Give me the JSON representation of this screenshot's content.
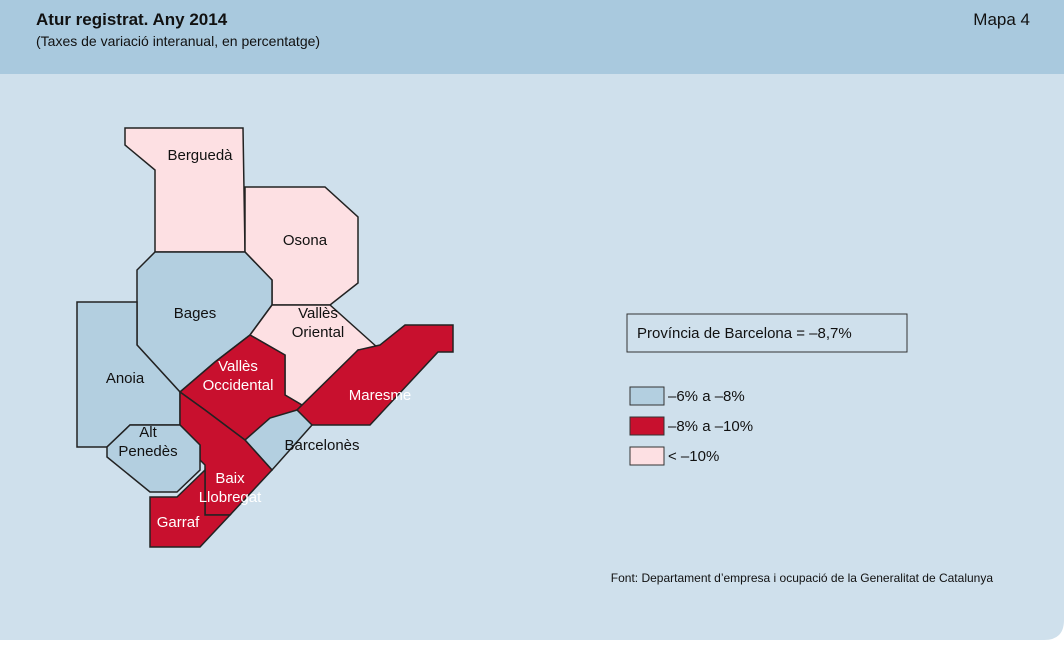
{
  "header": {
    "title": "Atur registrat. Any 2014",
    "subtitle": "(Taxes de variació interanual, en percentatge)",
    "map_label": "Mapa 4"
  },
  "regions": [
    {
      "label": [
        "Berguedà"
      ],
      "class": 2
    },
    {
      "label": [
        "Osona"
      ],
      "class": 2
    },
    {
      "label": [
        "Bages"
      ],
      "class": 0
    },
    {
      "label": [
        "Anoia"
      ],
      "class": 0
    },
    {
      "label": [
        "Vallès",
        "Oriental"
      ],
      "class": 2
    },
    {
      "label": [
        "Vallès",
        "Occidental"
      ],
      "class": 1
    },
    {
      "label": [
        "Maresme"
      ],
      "class": 1
    },
    {
      "label": [
        "Barcelonès"
      ],
      "class": 0
    },
    {
      "label": [
        "Baix",
        "Llobregat"
      ],
      "class": 1
    },
    {
      "label": [
        "Garraf"
      ],
      "class": 1
    },
    {
      "label": [
        "Alt",
        "Penedès"
      ],
      "class": 0
    }
  ],
  "summary": "Província de Barcelona = –8,7%",
  "legend": [
    {
      "label": "–6% a –8%",
      "color": "#b3cfe0"
    },
    {
      "label": "–8% a –10%",
      "color": "#c8102e"
    },
    {
      "label": "< –10%",
      "color": "#fde0e3"
    }
  ],
  "source": "Font: Departament d’empresa i ocupació de la Generalitat de Catalunya"
}
